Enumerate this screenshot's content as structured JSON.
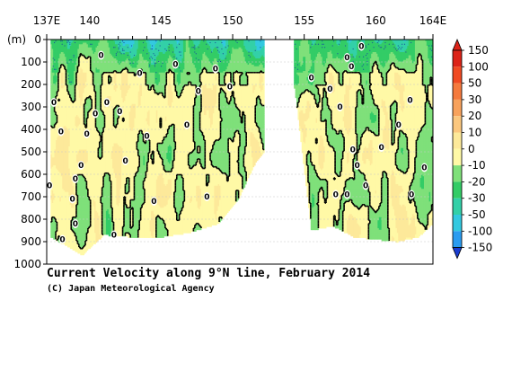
{
  "chart_data": {
    "type": "heatmap",
    "title": "Current Velocity along 9°N line, February 2014",
    "credit": "(C) Japan Meteorological Agency",
    "x_axis": {
      "range": [
        137,
        164
      ],
      "ticks": [
        {
          "value": 137,
          "label": "137E"
        },
        {
          "value": 140,
          "label": "140"
        },
        {
          "value": 145,
          "label": "145"
        },
        {
          "value": 150,
          "label": "150"
        },
        {
          "value": 155,
          "label": "155"
        },
        {
          "value": 160,
          "label": "160"
        },
        {
          "value": 164,
          "label": "164E"
        }
      ],
      "position": "top"
    },
    "y_axis": {
      "range": [
        0,
        1000
      ],
      "unit_label": "(m)",
      "inverted": true,
      "ticks": [
        0,
        100,
        200,
        300,
        400,
        500,
        600,
        700,
        800,
        900,
        1000
      ]
    },
    "grid": true,
    "colorbar": {
      "position": "right",
      "levels": [
        {
          "value": 150,
          "label": "150",
          "color": "#dc2318"
        },
        {
          "value": 100,
          "label": "100",
          "color": "#f04a22"
        },
        {
          "value": 50,
          "label": "50",
          "color": "#f57a3d"
        },
        {
          "value": 30,
          "label": "30",
          "color": "#f8a25c"
        },
        {
          "value": 20,
          "label": "20",
          "color": "#fbc77e"
        },
        {
          "value": 10,
          "label": "10",
          "color": "#fde99a"
        },
        {
          "value": 0,
          "label": "0",
          "color": "#fff9a6"
        },
        {
          "value": -10,
          "label": "-10",
          "color": "#7fe07a"
        },
        {
          "value": -20,
          "label": "-20",
          "color": "#33cc66"
        },
        {
          "value": -30,
          "label": "-30",
          "color": "#33d0a8"
        },
        {
          "value": -50,
          "label": "-50",
          "color": "#33c9e0"
        },
        {
          "value": -100,
          "label": "-100",
          "color": "#2a9cf0"
        },
        {
          "value": -150,
          "label": "-150",
          "color": "#1a64e0"
        }
      ],
      "bottom_color": "#1a3cd0"
    },
    "data_gaps": [
      {
        "lon_range": [
          137.0,
          137.3
        ],
        "depth_range": [
          0,
          1000
        ]
      },
      {
        "lon_range": [
          152.2,
          154.3
        ],
        "depth_range": [
          0,
          1000
        ]
      }
    ],
    "coverage": {
      "max_depth_by_lon": [
        [
          137.3,
          880
        ],
        [
          139.5,
          960
        ],
        [
          141,
          870
        ],
        [
          143,
          880
        ],
        [
          145,
          880
        ],
        [
          147,
          860
        ],
        [
          149,
          820
        ],
        [
          150.5,
          700
        ],
        [
          151.5,
          560
        ],
        [
          152.2,
          500
        ],
        [
          154.3,
          200
        ],
        [
          155.5,
          850
        ],
        [
          157,
          830
        ],
        [
          158.5,
          880
        ],
        [
          160,
          890
        ],
        [
          161.5,
          900
        ],
        [
          163,
          880
        ],
        [
          164,
          820
        ]
      ]
    },
    "zero_contour_labels": [
      {
        "lon": 137.2,
        "depth": 650
      },
      {
        "lon": 137.5,
        "depth": 280
      },
      {
        "lon": 138.0,
        "depth": 410
      },
      {
        "lon": 138.8,
        "depth": 710
      },
      {
        "lon": 139.0,
        "depth": 820
      },
      {
        "lon": 138.1,
        "depth": 890
      },
      {
        "lon": 139.4,
        "depth": 560
      },
      {
        "lon": 139.0,
        "depth": 620
      },
      {
        "lon": 139.8,
        "depth": 420
      },
      {
        "lon": 140.4,
        "depth": 330
      },
      {
        "lon": 140.8,
        "depth": 70
      },
      {
        "lon": 141.2,
        "depth": 280
      },
      {
        "lon": 142.1,
        "depth": 320
      },
      {
        "lon": 142.5,
        "depth": 540
      },
      {
        "lon": 141.7,
        "depth": 870
      },
      {
        "lon": 143.5,
        "depth": 150
      },
      {
        "lon": 144.0,
        "depth": 430
      },
      {
        "lon": 144.5,
        "depth": 720
      },
      {
        "lon": 146.0,
        "depth": 110
      },
      {
        "lon": 146.8,
        "depth": 380
      },
      {
        "lon": 147.6,
        "depth": 230
      },
      {
        "lon": 148.2,
        "depth": 700
      },
      {
        "lon": 148.8,
        "depth": 130
      },
      {
        "lon": 149.8,
        "depth": 210
      },
      {
        "lon": 155.5,
        "depth": 170
      },
      {
        "lon": 156.8,
        "depth": 220
      },
      {
        "lon": 157.5,
        "depth": 300
      },
      {
        "lon": 158.0,
        "depth": 80
      },
      {
        "lon": 158.3,
        "depth": 120
      },
      {
        "lon": 159.0,
        "depth": 30
      },
      {
        "lon": 158.4,
        "depth": 490
      },
      {
        "lon": 158.7,
        "depth": 560
      },
      {
        "lon": 157.2,
        "depth": 690
      },
      {
        "lon": 158.0,
        "depth": 690
      },
      {
        "lon": 159.3,
        "depth": 650
      },
      {
        "lon": 160.4,
        "depth": 480
      },
      {
        "lon": 161.6,
        "depth": 380
      },
      {
        "lon": 162.4,
        "depth": 270
      },
      {
        "lon": 163.4,
        "depth": 570
      },
      {
        "lon": 162.5,
        "depth": 690
      }
    ]
  }
}
